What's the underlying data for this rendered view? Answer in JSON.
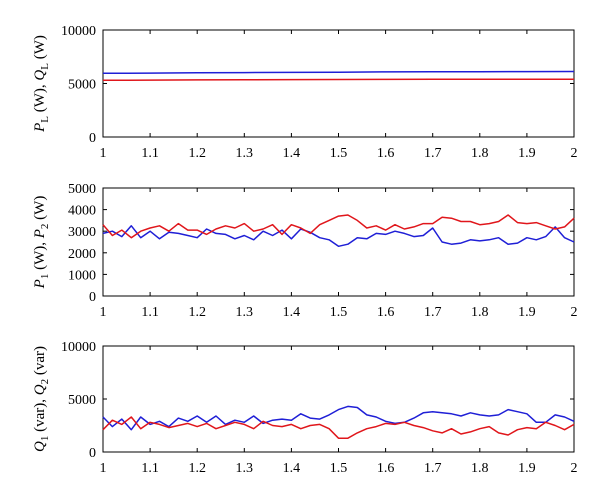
{
  "colors": {
    "blue": "#1f1fd6",
    "red": "#e0161b"
  },
  "chart_data": [
    {
      "type": "line",
      "title": "",
      "xlabel": "",
      "ylabel": "P_L (W), Q_L (W)",
      "ylabel_parts": {
        "a": "P",
        "a_sub": "L",
        "a_unit": " (W), ",
        "b": "Q",
        "b_sub": "L",
        "b_unit": " (W)"
      },
      "xlim": [
        1,
        2
      ],
      "ylim": [
        0,
        10000
      ],
      "xticks": [
        "1",
        "1.1",
        "1.2",
        "1.3",
        "1.4",
        "1.5",
        "1.6",
        "1.7",
        "1.8",
        "1.9",
        "2"
      ],
      "yticks": [
        "0",
        "5000",
        "10000"
      ],
      "grid": false,
      "series": [
        {
          "color": "blue",
          "x": [
            1.0,
            1.1,
            1.2,
            1.3,
            1.4,
            1.5,
            1.6,
            1.7,
            1.8,
            1.9,
            2.0
          ],
          "y": [
            5950,
            5975,
            6000,
            6020,
            6040,
            6060,
            6080,
            6090,
            6100,
            6110,
            6120
          ]
        },
        {
          "color": "red",
          "x": [
            1.0,
            1.1,
            1.2,
            1.3,
            1.4,
            1.5,
            1.6,
            1.7,
            1.8,
            1.9,
            2.0
          ],
          "y": [
            5300,
            5320,
            5340,
            5350,
            5360,
            5370,
            5380,
            5390,
            5395,
            5400,
            5405
          ]
        }
      ]
    },
    {
      "type": "line",
      "title": "",
      "xlabel": "",
      "ylabel": "P_1 (W), P_2 (W)",
      "ylabel_parts": {
        "a": "P",
        "a_sub": "1",
        "a_unit": " (W), ",
        "b": "P",
        "b_sub": "2",
        "b_unit": " (W)"
      },
      "xlim": [
        1,
        2
      ],
      "ylim": [
        0,
        5000
      ],
      "xticks": [
        "1",
        "1.1",
        "1.2",
        "1.3",
        "1.4",
        "1.5",
        "1.6",
        "1.7",
        "1.8",
        "1.9",
        "2"
      ],
      "yticks": [
        "0",
        "1000",
        "2000",
        "3000",
        "4000",
        "5000"
      ],
      "grid": false,
      "series": [
        {
          "color": "blue",
          "x": [
            1.0,
            1.02,
            1.04,
            1.06,
            1.08,
            1.1,
            1.12,
            1.14,
            1.16,
            1.18,
            1.2,
            1.22,
            1.24,
            1.26,
            1.28,
            1.3,
            1.32,
            1.34,
            1.36,
            1.38,
            1.4,
            1.42,
            1.44,
            1.46,
            1.48,
            1.5,
            1.52,
            1.54,
            1.56,
            1.58,
            1.6,
            1.62,
            1.64,
            1.66,
            1.68,
            1.7,
            1.72,
            1.74,
            1.76,
            1.78,
            1.8,
            1.82,
            1.84,
            1.86,
            1.88,
            1.9,
            1.92,
            1.94,
            1.96,
            1.98,
            2.0
          ],
          "y": [
            2900,
            3000,
            2750,
            3250,
            2700,
            3000,
            2650,
            2950,
            2900,
            2800,
            2700,
            3100,
            2900,
            2850,
            2650,
            2800,
            2600,
            3000,
            2800,
            3050,
            2650,
            3100,
            2950,
            2700,
            2600,
            2300,
            2400,
            2700,
            2650,
            2900,
            2850,
            3000,
            2900,
            2750,
            2800,
            3150,
            2500,
            2400,
            2450,
            2600,
            2550,
            2600,
            2700,
            2400,
            2450,
            2700,
            2600,
            2750,
            3200,
            2700,
            2500
          ]
        },
        {
          "color": "red",
          "x": [
            1.0,
            1.02,
            1.04,
            1.06,
            1.08,
            1.1,
            1.12,
            1.14,
            1.16,
            1.18,
            1.2,
            1.22,
            1.24,
            1.26,
            1.28,
            1.3,
            1.32,
            1.34,
            1.36,
            1.38,
            1.4,
            1.42,
            1.44,
            1.46,
            1.48,
            1.5,
            1.52,
            1.54,
            1.56,
            1.58,
            1.6,
            1.62,
            1.64,
            1.66,
            1.68,
            1.7,
            1.72,
            1.74,
            1.76,
            1.78,
            1.8,
            1.82,
            1.84,
            1.86,
            1.88,
            1.9,
            1.92,
            1.94,
            1.96,
            1.98,
            2.0
          ],
          "y": [
            3300,
            2800,
            3050,
            2700,
            3000,
            3150,
            3250,
            3000,
            3350,
            3050,
            3050,
            2850,
            3100,
            3250,
            3150,
            3350,
            3000,
            3100,
            3300,
            2850,
            3300,
            3150,
            2900,
            3300,
            3500,
            3700,
            3750,
            3500,
            3150,
            3250,
            3050,
            3300,
            3100,
            3200,
            3350,
            3350,
            3650,
            3600,
            3450,
            3450,
            3300,
            3350,
            3450,
            3750,
            3400,
            3350,
            3400,
            3250,
            3100,
            3200,
            3600
          ]
        }
      ]
    },
    {
      "type": "line",
      "title": "",
      "xlabel": "",
      "ylabel": "Q_1 (var), Q_2 (var)",
      "ylabel_parts": {
        "a": "Q",
        "a_sub": "1",
        "a_unit": " (var), ",
        "b": "Q",
        "b_sub": "2",
        "b_unit": " (var)"
      },
      "xlim": [
        1,
        2
      ],
      "ylim": [
        0,
        10000
      ],
      "xticks": [
        "1",
        "1.1",
        "1.2",
        "1.3",
        "1.4",
        "1.5",
        "1.6",
        "1.7",
        "1.8",
        "1.9",
        "2"
      ],
      "yticks": [
        "0",
        "5000",
        "10000"
      ],
      "grid": false,
      "series": [
        {
          "color": "blue",
          "x": [
            1.0,
            1.02,
            1.04,
            1.06,
            1.08,
            1.1,
            1.12,
            1.14,
            1.16,
            1.18,
            1.2,
            1.22,
            1.24,
            1.26,
            1.28,
            1.3,
            1.32,
            1.34,
            1.36,
            1.38,
            1.4,
            1.42,
            1.44,
            1.46,
            1.48,
            1.5,
            1.52,
            1.54,
            1.56,
            1.58,
            1.6,
            1.62,
            1.64,
            1.66,
            1.68,
            1.7,
            1.72,
            1.74,
            1.76,
            1.78,
            1.8,
            1.82,
            1.84,
            1.86,
            1.88,
            1.9,
            1.92,
            1.94,
            1.96,
            1.98,
            2.0
          ],
          "y": [
            3300,
            2400,
            3100,
            2100,
            3300,
            2600,
            2900,
            2400,
            3200,
            2900,
            3400,
            2800,
            3400,
            2600,
            3000,
            2800,
            3400,
            2700,
            3000,
            3100,
            3000,
            3600,
            3200,
            3100,
            3500,
            4000,
            4300,
            4200,
            3500,
            3300,
            2900,
            2700,
            2800,
            3200,
            3700,
            3800,
            3700,
            3600,
            3400,
            3700,
            3500,
            3400,
            3500,
            4000,
            3800,
            3600,
            2800,
            2800,
            3500,
            3300,
            2900
          ]
        },
        {
          "color": "red",
          "x": [
            1.0,
            1.02,
            1.04,
            1.06,
            1.08,
            1.1,
            1.12,
            1.14,
            1.16,
            1.18,
            1.2,
            1.22,
            1.24,
            1.26,
            1.28,
            1.3,
            1.32,
            1.34,
            1.36,
            1.38,
            1.4,
            1.42,
            1.44,
            1.46,
            1.48,
            1.5,
            1.52,
            1.54,
            1.56,
            1.58,
            1.6,
            1.62,
            1.64,
            1.66,
            1.68,
            1.7,
            1.72,
            1.74,
            1.76,
            1.78,
            1.8,
            1.82,
            1.84,
            1.86,
            1.88,
            1.9,
            1.92,
            1.94,
            1.96,
            1.98,
            2.0
          ],
          "y": [
            2100,
            3000,
            2600,
            3300,
            2200,
            2800,
            2600,
            2300,
            2500,
            2700,
            2400,
            2700,
            2200,
            2500,
            2800,
            2600,
            2200,
            2900,
            2500,
            2400,
            2600,
            2200,
            2500,
            2600,
            2200,
            1300,
            1300,
            1800,
            2200,
            2400,
            2700,
            2600,
            2800,
            2500,
            2300,
            2000,
            1800,
            2200,
            1700,
            1900,
            2200,
            2400,
            1800,
            1600,
            2100,
            2300,
            2200,
            2800,
            2500,
            2100,
            2600
          ]
        }
      ]
    }
  ]
}
